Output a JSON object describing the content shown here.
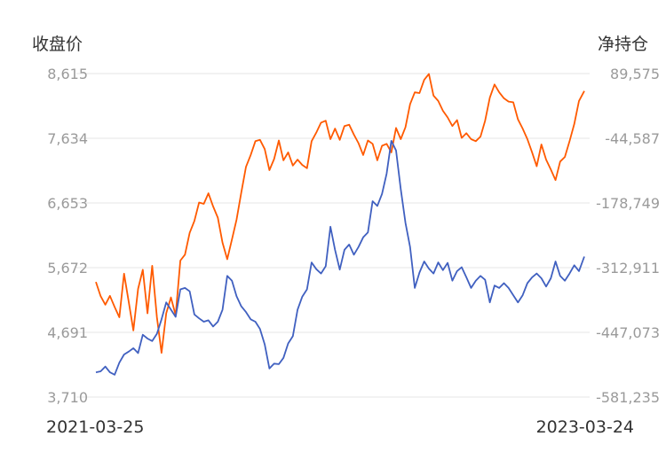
{
  "chart_data": {
    "type": "line",
    "left_axis_title": "收盘价",
    "right_axis_title": "净持仓",
    "left_ticks": [
      "8,615",
      "7,634",
      "6,653",
      "5,672",
      "4,691",
      "3,710"
    ],
    "right_ticks": [
      "89,575",
      "-44,587",
      "-178,749",
      "-312,911",
      "-447,073",
      "-581,235"
    ],
    "left_range": [
      3710,
      8615
    ],
    "right_range": [
      -581235,
      89575
    ],
    "x_start_label": "2021-03-25",
    "x_end_label": "2023-03-24",
    "grid": true,
    "series": [
      {
        "axis": "left",
        "color": "#ff5a00",
        "points": [
          [
            "2021-03-25",
            5455
          ],
          [
            "2021-04-01",
            5240
          ],
          [
            "2021-04-08",
            5110
          ],
          [
            "2021-04-15",
            5245
          ],
          [
            "2021-04-22",
            5075
          ],
          [
            "2021-04-29",
            4920
          ],
          [
            "2021-05-06",
            5580
          ],
          [
            "2021-05-13",
            5150
          ],
          [
            "2021-05-20",
            4720
          ],
          [
            "2021-05-27",
            5350
          ],
          [
            "2021-06-03",
            5640
          ],
          [
            "2021-06-10",
            4980
          ],
          [
            "2021-06-17",
            5700
          ],
          [
            "2021-06-24",
            4920
          ],
          [
            "2021-07-01",
            4380
          ],
          [
            "2021-07-08",
            4980
          ],
          [
            "2021-07-15",
            5220
          ],
          [
            "2021-07-22",
            4950
          ],
          [
            "2021-07-29",
            5780
          ],
          [
            "2021-08-05",
            5870
          ],
          [
            "2021-08-12",
            6200
          ],
          [
            "2021-08-19",
            6380
          ],
          [
            "2021-08-26",
            6660
          ],
          [
            "2021-09-02",
            6640
          ],
          [
            "2021-09-09",
            6800
          ],
          [
            "2021-09-16",
            6600
          ],
          [
            "2021-09-23",
            6430
          ],
          [
            "2021-09-30",
            6050
          ],
          [
            "2021-10-07",
            5800
          ],
          [
            "2021-10-14",
            6100
          ],
          [
            "2021-10-21",
            6400
          ],
          [
            "2021-10-28",
            6810
          ],
          [
            "2021-11-04",
            7200
          ],
          [
            "2021-11-11",
            7380
          ],
          [
            "2021-11-18",
            7590
          ],
          [
            "2021-11-25",
            7610
          ],
          [
            "2021-12-02",
            7470
          ],
          [
            "2021-12-09",
            7150
          ],
          [
            "2021-12-16",
            7320
          ],
          [
            "2021-12-23",
            7600
          ],
          [
            "2021-12-30",
            7300
          ],
          [
            "2022-01-06",
            7420
          ],
          [
            "2022-01-13",
            7220
          ],
          [
            "2022-01-20",
            7310
          ],
          [
            "2022-01-27",
            7230
          ],
          [
            "2022-02-03",
            7180
          ],
          [
            "2022-02-10",
            7590
          ],
          [
            "2022-02-17",
            7720
          ],
          [
            "2022-02-24",
            7870
          ],
          [
            "2022-03-03",
            7900
          ],
          [
            "2022-03-10",
            7620
          ],
          [
            "2022-03-17",
            7780
          ],
          [
            "2022-03-24",
            7610
          ],
          [
            "2022-03-31",
            7820
          ],
          [
            "2022-04-07",
            7840
          ],
          [
            "2022-04-14",
            7690
          ],
          [
            "2022-04-21",
            7560
          ],
          [
            "2022-04-28",
            7380
          ],
          [
            "2022-05-05",
            7600
          ],
          [
            "2022-05-12",
            7550
          ],
          [
            "2022-05-19",
            7300
          ],
          [
            "2022-05-26",
            7520
          ],
          [
            "2022-06-02",
            7550
          ],
          [
            "2022-06-09",
            7420
          ],
          [
            "2022-06-16",
            7790
          ],
          [
            "2022-06-23",
            7620
          ],
          [
            "2022-06-30",
            7800
          ],
          [
            "2022-07-07",
            8150
          ],
          [
            "2022-07-14",
            8330
          ],
          [
            "2022-07-21",
            8320
          ],
          [
            "2022-07-28",
            8520
          ],
          [
            "2022-08-04",
            8610
          ],
          [
            "2022-08-11",
            8280
          ],
          [
            "2022-08-18",
            8200
          ],
          [
            "2022-08-25",
            8050
          ],
          [
            "2022-09-01",
            7950
          ],
          [
            "2022-09-08",
            7820
          ],
          [
            "2022-09-15",
            7910
          ],
          [
            "2022-09-22",
            7640
          ],
          [
            "2022-09-29",
            7710
          ],
          [
            "2022-10-06",
            7620
          ],
          [
            "2022-10-13",
            7590
          ],
          [
            "2022-10-20",
            7660
          ],
          [
            "2022-10-27",
            7900
          ],
          [
            "2022-11-03",
            8250
          ],
          [
            "2022-11-10",
            8450
          ],
          [
            "2022-11-17",
            8330
          ],
          [
            "2022-11-24",
            8240
          ],
          [
            "2022-12-01",
            8190
          ],
          [
            "2022-12-08",
            8180
          ],
          [
            "2022-12-15",
            7920
          ],
          [
            "2022-12-22",
            7780
          ],
          [
            "2022-12-29",
            7620
          ],
          [
            "2023-01-05",
            7420
          ],
          [
            "2023-01-12",
            7210
          ],
          [
            "2023-01-19",
            7540
          ],
          [
            "2023-01-26",
            7310
          ],
          [
            "2023-02-02",
            7160
          ],
          [
            "2023-02-09",
            7000
          ],
          [
            "2023-02-16",
            7280
          ],
          [
            "2023-02-23",
            7350
          ],
          [
            "2023-03-02",
            7590
          ],
          [
            "2023-03-09",
            7850
          ],
          [
            "2023-03-16",
            8200
          ],
          [
            "2023-03-24",
            8350
          ]
        ]
      },
      {
        "axis": "right",
        "color": "#4060c0",
        "points": [
          [
            "2021-03-25",
            -530000
          ],
          [
            "2021-04-01",
            -528000
          ],
          [
            "2021-04-08",
            -518000
          ],
          [
            "2021-04-15",
            -530000
          ],
          [
            "2021-04-22",
            -535000
          ],
          [
            "2021-04-29",
            -510000
          ],
          [
            "2021-05-06",
            -493000
          ],
          [
            "2021-05-13",
            -487000
          ],
          [
            "2021-05-20",
            -480000
          ],
          [
            "2021-05-27",
            -490000
          ],
          [
            "2021-06-03",
            -452000
          ],
          [
            "2021-06-10",
            -460000
          ],
          [
            "2021-06-17",
            -465000
          ],
          [
            "2021-06-24",
            -450000
          ],
          [
            "2021-07-01",
            -420000
          ],
          [
            "2021-07-08",
            -385000
          ],
          [
            "2021-07-15",
            -400000
          ],
          [
            "2021-07-22",
            -415000
          ],
          [
            "2021-07-29",
            -358000
          ],
          [
            "2021-08-05",
            -355000
          ],
          [
            "2021-08-12",
            -362000
          ],
          [
            "2021-08-19",
            -410000
          ],
          [
            "2021-08-26",
            -418000
          ],
          [
            "2021-09-02",
            -425000
          ],
          [
            "2021-09-09",
            -422000
          ],
          [
            "2021-09-16",
            -435000
          ],
          [
            "2021-09-23",
            -425000
          ],
          [
            "2021-09-30",
            -400000
          ],
          [
            "2021-10-07",
            -330000
          ],
          [
            "2021-10-14",
            -340000
          ],
          [
            "2021-10-21",
            -372000
          ],
          [
            "2021-10-28",
            -393000
          ],
          [
            "2021-11-04",
            -405000
          ],
          [
            "2021-11-11",
            -420000
          ],
          [
            "2021-11-18",
            -425000
          ],
          [
            "2021-11-25",
            -440000
          ],
          [
            "2021-12-02",
            -472000
          ],
          [
            "2021-12-09",
            -522000
          ],
          [
            "2021-12-16",
            -512000
          ],
          [
            "2021-12-23",
            -513000
          ],
          [
            "2021-12-30",
            -500000
          ],
          [
            "2022-01-06",
            -470000
          ],
          [
            "2022-01-13",
            -455000
          ],
          [
            "2022-01-20",
            -400000
          ],
          [
            "2022-01-27",
            -373000
          ],
          [
            "2022-02-03",
            -358000
          ],
          [
            "2022-02-10",
            -302000
          ],
          [
            "2022-02-17",
            -316000
          ],
          [
            "2022-02-24",
            -325000
          ],
          [
            "2022-03-03",
            -310000
          ],
          [
            "2022-03-10",
            -228000
          ],
          [
            "2022-03-17",
            -276000
          ],
          [
            "2022-03-24",
            -317000
          ],
          [
            "2022-03-31",
            -276000
          ],
          [
            "2022-04-07",
            -265000
          ],
          [
            "2022-04-14",
            -286000
          ],
          [
            "2022-04-21",
            -270000
          ],
          [
            "2022-04-28",
            -250000
          ],
          [
            "2022-05-05",
            -240000
          ],
          [
            "2022-05-12",
            -175000
          ],
          [
            "2022-05-19",
            -185000
          ],
          [
            "2022-05-26",
            -160000
          ],
          [
            "2022-06-02",
            -118000
          ],
          [
            "2022-06-09",
            -50000
          ],
          [
            "2022-06-16",
            -70000
          ],
          [
            "2022-06-23",
            -150000
          ],
          [
            "2022-06-30",
            -220000
          ],
          [
            "2022-07-07",
            -270000
          ],
          [
            "2022-07-14",
            -355000
          ],
          [
            "2022-07-21",
            -323000
          ],
          [
            "2022-07-28",
            -300000
          ],
          [
            "2022-08-04",
            -315000
          ],
          [
            "2022-08-11",
            -325000
          ],
          [
            "2022-08-18",
            -302000
          ],
          [
            "2022-08-25",
            -318000
          ],
          [
            "2022-09-01",
            -303000
          ],
          [
            "2022-09-08",
            -340000
          ],
          [
            "2022-09-15",
            -320000
          ],
          [
            "2022-09-22",
            -312000
          ],
          [
            "2022-09-29",
            -333000
          ],
          [
            "2022-10-06",
            -355000
          ],
          [
            "2022-10-13",
            -340000
          ],
          [
            "2022-10-20",
            -330000
          ],
          [
            "2022-10-27",
            -338000
          ],
          [
            "2022-11-03",
            -385000
          ],
          [
            "2022-11-10",
            -350000
          ],
          [
            "2022-11-17",
            -355000
          ],
          [
            "2022-11-24",
            -345000
          ],
          [
            "2022-12-01",
            -355000
          ],
          [
            "2022-12-08",
            -370000
          ],
          [
            "2022-12-15",
            -385000
          ],
          [
            "2022-12-22",
            -370000
          ],
          [
            "2022-12-29",
            -345000
          ],
          [
            "2023-01-05",
            -333000
          ],
          [
            "2023-01-12",
            -325000
          ],
          [
            "2023-01-19",
            -335000
          ],
          [
            "2023-01-26",
            -352000
          ],
          [
            "2023-02-02",
            -335000
          ],
          [
            "2023-02-09",
            -300000
          ],
          [
            "2023-02-16",
            -330000
          ],
          [
            "2023-02-23",
            -340000
          ],
          [
            "2023-03-02",
            -325000
          ],
          [
            "2023-03-09",
            -308000
          ],
          [
            "2023-03-16",
            -320000
          ],
          [
            "2023-03-24",
            -290000
          ]
        ]
      }
    ]
  }
}
